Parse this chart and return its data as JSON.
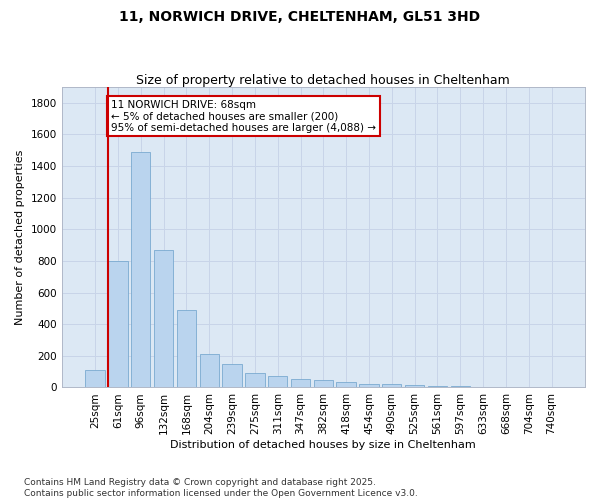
{
  "title": "11, NORWICH DRIVE, CHELTENHAM, GL51 3HD",
  "subtitle": "Size of property relative to detached houses in Cheltenham",
  "xlabel": "Distribution of detached houses by size in Cheltenham",
  "ylabel": "Number of detached properties",
  "categories": [
    "25sqm",
    "61sqm",
    "96sqm",
    "132sqm",
    "168sqm",
    "204sqm",
    "239sqm",
    "275sqm",
    "311sqm",
    "347sqm",
    "382sqm",
    "418sqm",
    "454sqm",
    "490sqm",
    "525sqm",
    "561sqm",
    "597sqm",
    "633sqm",
    "668sqm",
    "704sqm",
    "740sqm"
  ],
  "values": [
    110,
    800,
    1490,
    870,
    490,
    210,
    150,
    90,
    70,
    55,
    45,
    35,
    25,
    20,
    15,
    12,
    8,
    5,
    0,
    0,
    0
  ],
  "bar_color": "#bad4ee",
  "bar_edge_color": "#7aaad0",
  "vline_color": "#cc0000",
  "annotation_text": "11 NORWICH DRIVE: 68sqm\n← 5% of detached houses are smaller (200)\n95% of semi-detached houses are larger (4,088) →",
  "annotation_box_color": "#ffffff",
  "annotation_box_edge": "#cc0000",
  "ylim": [
    0,
    1900
  ],
  "yticks": [
    0,
    200,
    400,
    600,
    800,
    1000,
    1200,
    1400,
    1600,
    1800
  ],
  "grid_color": "#c8d4e8",
  "bg_color": "#dce8f4",
  "footnote": "Contains HM Land Registry data © Crown copyright and database right 2025.\nContains public sector information licensed under the Open Government Licence v3.0.",
  "title_fontsize": 10,
  "subtitle_fontsize": 9,
  "axis_label_fontsize": 8,
  "tick_fontsize": 7.5,
  "annotation_fontsize": 7.5,
  "footnote_fontsize": 6.5
}
